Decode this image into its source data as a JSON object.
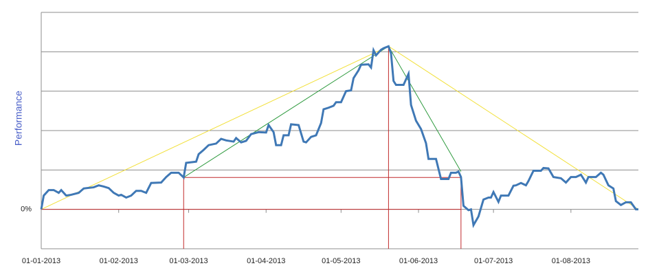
{
  "chart_data": {
    "type": "line",
    "y_label": "Performance",
    "xlim": [
      "2013-01-01",
      "2013-08-28"
    ],
    "xticks": [
      {
        "value": "2013-01-01",
        "label": "01-01-2013"
      },
      {
        "value": "2013-02-01",
        "label": "01-02-2013"
      },
      {
        "value": "2013-03-01",
        "label": "01-03-2013"
      },
      {
        "value": "2013-04-01",
        "label": "01-04-2013"
      },
      {
        "value": "2013-05-01",
        "label": "01-05-2013"
      },
      {
        "value": "2013-06-01",
        "label": "01-06-2013"
      },
      {
        "value": "2013-07-01",
        "label": "01-07-2013"
      },
      {
        "value": "2013-08-01",
        "label": "01-08-2013"
      }
    ],
    "ylim": [
      -10,
      50
    ],
    "yticks": [
      {
        "value": -10,
        "label": null
      },
      {
        "value": 0,
        "label": "0%"
      },
      {
        "value": 10,
        "label": null
      },
      {
        "value": 20,
        "label": null
      },
      {
        "value": 30,
        "label": null
      },
      {
        "value": 40,
        "label": null
      },
      {
        "value": 50,
        "label": null
      }
    ],
    "grid": true,
    "series": [
      {
        "color": "#3f78b5",
        "x": [
          "2013-01-01",
          "2013-01-02",
          "2013-01-04",
          "2013-01-06",
          "2013-01-08",
          "2013-01-09",
          "2013-01-11",
          "2013-01-13",
          "2013-01-16",
          "2013-01-18",
          "2013-01-22",
          "2013-01-24",
          "2013-01-26",
          "2013-01-28",
          "2013-01-30",
          "2013-02-01",
          "2013-02-02",
          "2013-02-04",
          "2013-02-06",
          "2013-02-08",
          "2013-02-10",
          "2013-02-12",
          "2013-02-14",
          "2013-02-18",
          "2013-02-20",
          "2013-02-22",
          "2013-02-25",
          "2013-02-27",
          "2013-02-28",
          "2013-03-04",
          "2013-03-05",
          "2013-03-07",
          "2013-03-09",
          "2013-03-12",
          "2013-03-14",
          "2013-03-16",
          "2013-03-19",
          "2013-03-20",
          "2013-03-22",
          "2013-03-24",
          "2013-03-26",
          "2013-03-29",
          "2013-04-01",
          "2013-04-02",
          "2013-04-04",
          "2013-04-05",
          "2013-04-07",
          "2013-04-08",
          "2013-04-10",
          "2013-04-11",
          "2013-04-14",
          "2013-04-16",
          "2013-04-17",
          "2013-04-19",
          "2013-04-21",
          "2013-04-23",
          "2013-04-24",
          "2013-04-26",
          "2013-04-28",
          "2013-04-29",
          "2013-05-01",
          "2013-05-03",
          "2013-05-05",
          "2013-05-06",
          "2013-05-08",
          "2013-05-09",
          "2013-05-12",
          "2013-05-13",
          "2013-05-14",
          "2013-05-15",
          "2013-05-17",
          "2013-05-18",
          "2013-05-20",
          "2013-05-21",
          "2013-05-22",
          "2013-05-23",
          "2013-05-26",
          "2013-05-28",
          "2013-05-29",
          "2013-05-31",
          "2013-06-02",
          "2013-06-04",
          "2013-06-05",
          "2013-06-08",
          "2013-06-10",
          "2013-06-13",
          "2013-06-14",
          "2013-06-16",
          "2013-06-17",
          "2013-06-18",
          "2013-06-19",
          "2013-06-21",
          "2013-06-22",
          "2013-06-23",
          "2013-06-25",
          "2013-06-27",
          "2013-06-29",
          "2013-06-30",
          "2013-07-01",
          "2013-07-03",
          "2013-07-04",
          "2013-07-07",
          "2013-07-09",
          "2013-07-10",
          "2013-07-12",
          "2013-07-14",
          "2013-07-15",
          "2013-07-17",
          "2013-07-20",
          "2013-07-21",
          "2013-07-23",
          "2013-07-25",
          "2013-07-28",
          "2013-07-30",
          "2013-08-01",
          "2013-08-03",
          "2013-08-05",
          "2013-08-07",
          "2013-08-08",
          "2013-08-11",
          "2013-08-13",
          "2013-08-14",
          "2013-08-16",
          "2013-08-18",
          "2013-08-19",
          "2013-08-21",
          "2013-08-23",
          "2013-08-25",
          "2013-08-27",
          "2013-08-28"
        ],
        "values": [
          0,
          3.5,
          4.9,
          4.9,
          4.2,
          4.9,
          3.5,
          3.7,
          4.2,
          5.3,
          5.6,
          6.1,
          5.8,
          5.4,
          4.2,
          3.5,
          3.7,
          3.0,
          3.5,
          4.7,
          4.7,
          4.2,
          6.7,
          6.8,
          8.2,
          9.3,
          9.3,
          8.1,
          11.8,
          12.1,
          14.0,
          15.1,
          16.3,
          16.7,
          17.9,
          17.5,
          17.2,
          18.1,
          17.0,
          17.4,
          19.1,
          19.6,
          19.5,
          21.4,
          19.6,
          16.3,
          16.3,
          18.8,
          18.8,
          21.6,
          21.4,
          17.2,
          17.0,
          18.4,
          18.8,
          21.9,
          25.4,
          25.8,
          26.3,
          27.2,
          27.2,
          30.0,
          30.2,
          33.3,
          35.3,
          36.7,
          36.8,
          36.0,
          40.4,
          39.1,
          40.5,
          40.9,
          41.4,
          39.6,
          32.6,
          31.6,
          31.6,
          34.4,
          26.5,
          22.5,
          20.4,
          16.8,
          12.8,
          12.8,
          7.7,
          7.7,
          9.3,
          9.3,
          9.6,
          8.2,
          0.9,
          -0.2,
          0,
          -4.0,
          -1.8,
          2.5,
          3.0,
          3.0,
          4.4,
          1.9,
          3.5,
          3.5,
          6.0,
          6.1,
          6.7,
          6.1,
          7.2,
          9.8,
          9.8,
          10.5,
          10.4,
          8.2,
          7.9,
          6.8,
          8.2,
          8.2,
          8.8,
          6.8,
          8.2,
          8.2,
          9.3,
          8.8,
          6.1,
          5.3,
          2.1,
          1.1,
          1.8,
          1.8,
          0,
          0
        ]
      }
    ],
    "reference_lines": [
      {
        "color": "#f2e03a",
        "x": [
          "2013-01-01",
          "2013-05-20",
          "2013-08-28"
        ],
        "values": [
          0,
          41.4,
          0
        ]
      },
      {
        "color": "#2e9a3e",
        "x": [
          "2013-02-27",
          "2013-05-20",
          "2013-06-18"
        ],
        "values": [
          8.1,
          41.4,
          9.6
        ]
      },
      {
        "color": "#c0282a",
        "x": [
          "2013-01-01",
          "2013-06-18"
        ],
        "values": [
          0,
          0
        ]
      },
      {
        "color": "#c0282a",
        "x": [
          "2013-02-27",
          "2013-06-18"
        ],
        "values": [
          8.1,
          8.1
        ]
      },
      {
        "color": "#c0282a",
        "x": [
          "2013-02-27",
          "2013-02-27"
        ],
        "values": [
          8.1,
          -10
        ]
      },
      {
        "color": "#c0282a",
        "x": [
          "2013-05-20",
          "2013-05-20"
        ],
        "values": [
          41.4,
          -10
        ]
      },
      {
        "color": "#c0282a",
        "x": [
          "2013-06-18",
          "2013-06-18"
        ],
        "values": [
          8.1,
          -10
        ]
      }
    ]
  }
}
